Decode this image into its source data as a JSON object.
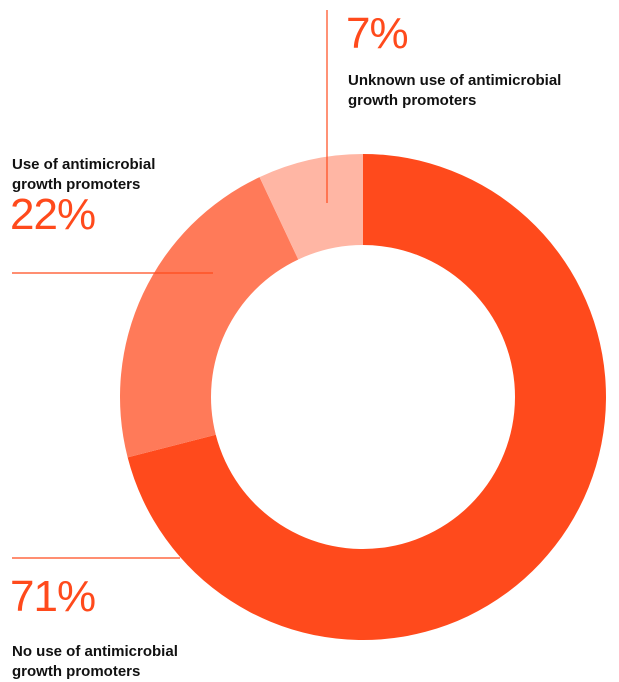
{
  "colors": {
    "accent_text": "#ff4a1c",
    "leader_line": "#ff4a1c"
  },
  "chart_data": {
    "type": "pie",
    "donut": true,
    "slices": [
      {
        "key": "no_use",
        "label_lines": [
          "No use of antimicrobial",
          "growth promoters"
        ],
        "percent_label": "71%",
        "value": 71,
        "color": "#ff4a1c"
      },
      {
        "key": "use",
        "label_lines": [
          "Use of antimicrobial",
          "growth promoters"
        ],
        "percent_label": "22%",
        "value": 22,
        "color": "#ff7a59"
      },
      {
        "key": "unknown",
        "label_lines": [
          "Unknown use of antimicrobial",
          "growth promoters"
        ],
        "percent_label": "7%",
        "value": 7,
        "color": "#ffb6a4"
      }
    ]
  }
}
